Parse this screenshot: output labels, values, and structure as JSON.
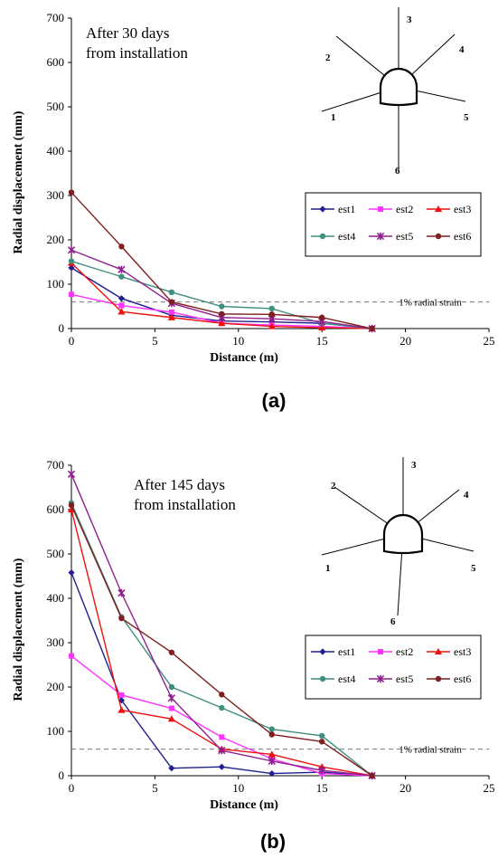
{
  "chart_data": [
    {
      "type": "line",
      "panel_label": "(a)",
      "annotation_lines": [
        "After 30 days",
        "from installation"
      ],
      "xlabel": "Distance (m)",
      "ylabel": "Radial displacement (mm)",
      "xlim": [
        0,
        25
      ],
      "ylim": [
        0,
        700
      ],
      "xticks": [
        0,
        5,
        10,
        15,
        20,
        25
      ],
      "yticks": [
        0,
        100,
        200,
        300,
        400,
        500,
        600,
        700
      ],
      "reference_line": {
        "y": 60,
        "label": "1% radial strain"
      },
      "legend_position": "right",
      "diagram_labels": [
        "1",
        "2",
        "3",
        "4",
        "5",
        "6"
      ],
      "series": [
        {
          "name": "est1",
          "color": "#1f1f8f",
          "marker": "diamond",
          "x": [
            0,
            3,
            6,
            9,
            12,
            15,
            18
          ],
          "y": [
            137,
            68,
            30,
            17,
            15,
            12,
            0
          ]
        },
        {
          "name": "est2",
          "color": "#ff33ff",
          "marker": "square",
          "x": [
            0,
            3,
            6,
            9,
            12,
            15,
            18
          ],
          "y": [
            77,
            52,
            37,
            12,
            8,
            5,
            0
          ]
        },
        {
          "name": "est3",
          "color": "#ee1111",
          "marker": "triangle",
          "x": [
            0,
            3,
            6,
            9,
            12,
            15,
            18
          ],
          "y": [
            148,
            38,
            25,
            12,
            5,
            2,
            0
          ]
        },
        {
          "name": "est4",
          "color": "#3f8f7f",
          "marker": "circle",
          "x": [
            0,
            3,
            6,
            9,
            12,
            15,
            18
          ],
          "y": [
            152,
            117,
            82,
            50,
            45,
            12,
            0
          ]
        },
        {
          "name": "est5",
          "color": "#8f1f8f",
          "marker": "star",
          "x": [
            0,
            3,
            6,
            9,
            12,
            15,
            18
          ],
          "y": [
            177,
            133,
            57,
            25,
            22,
            16,
            0
          ]
        },
        {
          "name": "est6",
          "color": "#7f1f1f",
          "marker": "circle",
          "x": [
            0,
            3,
            6,
            9,
            12,
            15,
            18
          ],
          "y": [
            307,
            185,
            60,
            33,
            32,
            25,
            0
          ]
        }
      ]
    },
    {
      "type": "line",
      "panel_label": "(b)",
      "annotation_lines": [
        "After 145 days",
        "from installation"
      ],
      "xlabel": "Distance (m)",
      "ylabel": "Radial displacement (mm)",
      "xlim": [
        0,
        25
      ],
      "ylim": [
        0,
        700
      ],
      "xticks": [
        0,
        5,
        10,
        15,
        20,
        25
      ],
      "yticks": [
        0,
        100,
        200,
        300,
        400,
        500,
        600,
        700
      ],
      "reference_line": {
        "y": 60,
        "label": "1% radial strain"
      },
      "legend_position": "right",
      "diagram_labels": [
        "1",
        "2",
        "3",
        "4",
        "5",
        "6"
      ],
      "series": [
        {
          "name": "est1",
          "color": "#1f1f8f",
          "marker": "diamond",
          "x": [
            0,
            3,
            6,
            9,
            12,
            15,
            18
          ],
          "y": [
            458,
            170,
            17,
            20,
            5,
            8,
            0
          ]
        },
        {
          "name": "est2",
          "color": "#ff33ff",
          "marker": "square",
          "x": [
            0,
            3,
            6,
            9,
            12,
            15,
            18
          ],
          "y": [
            270,
            182,
            152,
            87,
            38,
            5,
            0
          ]
        },
        {
          "name": "est3",
          "color": "#ee1111",
          "marker": "triangle",
          "x": [
            0,
            3,
            6,
            9,
            12,
            15,
            18
          ],
          "y": [
            600,
            148,
            128,
            60,
            48,
            20,
            0
          ]
        },
        {
          "name": "est4",
          "color": "#3f8f7f",
          "marker": "circle",
          "x": [
            0,
            3,
            6,
            9,
            12,
            15,
            18
          ],
          "y": [
            615,
            358,
            200,
            153,
            105,
            90,
            0
          ]
        },
        {
          "name": "est5",
          "color": "#8f1f8f",
          "marker": "star",
          "x": [
            0,
            3,
            6,
            9,
            12,
            15,
            18
          ],
          "y": [
            680,
            412,
            175,
            57,
            33,
            12,
            0
          ]
        },
        {
          "name": "est6",
          "color": "#7f1f1f",
          "marker": "circle",
          "x": [
            0,
            3,
            6,
            9,
            12,
            15,
            18
          ],
          "y": [
            610,
            355,
            278,
            183,
            93,
            77,
            0
          ]
        }
      ]
    }
  ]
}
